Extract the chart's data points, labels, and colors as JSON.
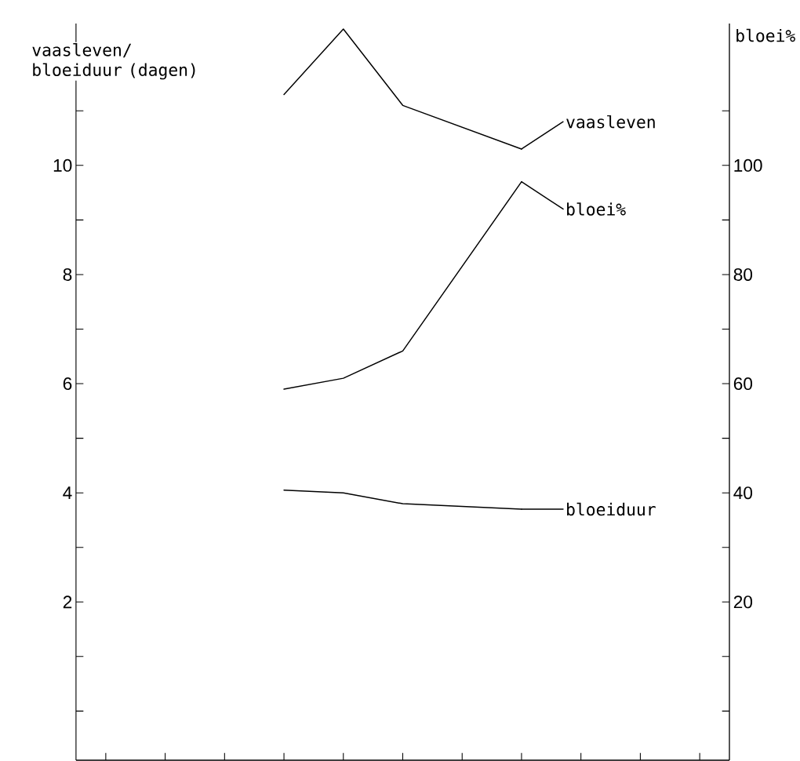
{
  "chart_data": {
    "type": "line",
    "ylabel": "vaasleven/ bloeiduur (dagen)",
    "y2label": "bloei%",
    "categories": [
      null,
      null,
      null,
      null,
      null,
      null,
      null,
      null,
      null,
      null,
      null
    ],
    "series": [
      {
        "name": "vaasleven",
        "color": "#000000",
        "values": [
          null,
          null,
          null,
          11.3,
          12.5,
          11.1,
          null,
          10.3,
          null,
          null,
          null
        ]
      },
      {
        "name": "bloei%",
        "color": "#000000",
        "axis": "y2",
        "values": [
          null,
          null,
          null,
          59,
          61,
          66,
          null,
          97,
          null,
          null,
          null
        ]
      },
      {
        "name": "bloeiduur",
        "color": "#000000",
        "values": [
          null,
          null,
          null,
          4.05,
          4.0,
          3.8,
          null,
          3.7,
          null,
          null,
          null
        ]
      }
    ],
    "ylim": [
      -0.9,
      12.6
    ],
    "yticks": [
      {
        "value": 0,
        "label": null
      },
      {
        "value": 1,
        "label": null
      },
      2,
      {
        "value": 3,
        "label": null
      },
      4,
      {
        "value": 5,
        "label": null
      },
      6,
      {
        "value": 7,
        "label": null
      },
      8,
      {
        "value": 9,
        "label": null
      },
      10,
      {
        "value": 11,
        "label": null
      }
    ],
    "y2lim": [
      -9,
      126
    ],
    "y2ticks": [
      {
        "value": 0,
        "label": null
      },
      {
        "value": 10,
        "label": null
      },
      20,
      {
        "value": 30,
        "label": null
      },
      40,
      {
        "value": 50,
        "label": null
      },
      60,
      {
        "value": 70,
        "label": null
      },
      80,
      {
        "value": 90,
        "label": null
      },
      100,
      {
        "value": 110,
        "label": null
      }
    ],
    "tick_labels": "y",
    "line_style": "solid"
  }
}
